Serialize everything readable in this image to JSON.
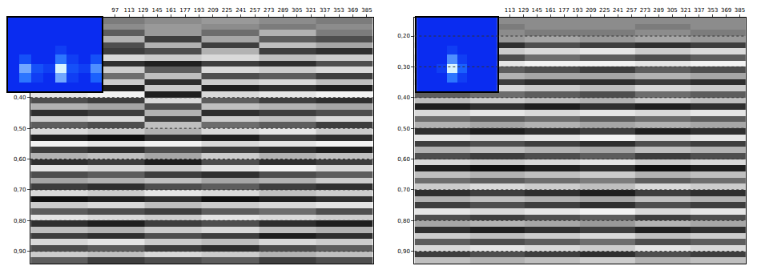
{
  "chart_data": [
    {
      "type": "heatmap",
      "x": [
        33,
        98,
        163,
        229,
        294,
        359
      ],
      "y": [
        0.15,
        0.17,
        0.19,
        0.21,
        0.23,
        0.25,
        0.27,
        0.29,
        0.31,
        0.33,
        0.35,
        0.37,
        0.39,
        0.41,
        0.43,
        0.45,
        0.47,
        0.49,
        0.51,
        0.53,
        0.55,
        0.57,
        0.59,
        0.61,
        0.63,
        0.65,
        0.67,
        0.69,
        0.71,
        0.73,
        0.75,
        0.77,
        0.79,
        0.81,
        0.83,
        0.85,
        0.87,
        0.89,
        0.91,
        0.93
      ],
      "z": [
        [
          0,
          1,
          0,
          -1,
          0,
          1
        ],
        [
          1,
          0,
          -1,
          0,
          1,
          0
        ],
        [
          -2,
          3,
          -1,
          2,
          -3,
          1
        ],
        [
          4,
          -3,
          5,
          -2,
          3,
          4
        ],
        [
          -5,
          4,
          -3,
          5,
          -4,
          -2
        ],
        [
          6,
          5,
          4,
          -3,
          5,
          6
        ],
        [
          -7,
          -6,
          -5,
          -6,
          -4,
          -5
        ],
        [
          5,
          6,
          7,
          5,
          6,
          4
        ],
        [
          -4,
          -5,
          3,
          -6,
          -5,
          -6
        ],
        [
          3,
          2,
          -4,
          4,
          3,
          5
        ],
        [
          -6,
          -5,
          6,
          -5,
          -6,
          -4
        ],
        [
          8,
          7,
          -5,
          7,
          6,
          7
        ],
        [
          -7,
          -8,
          7,
          -6,
          -7,
          -8
        ],
        [
          4,
          5,
          -6,
          3,
          5,
          6
        ],
        [
          -3,
          -2,
          4,
          -4,
          -3,
          -2
        ],
        [
          6,
          5,
          -3,
          6,
          5,
          4
        ],
        [
          -5,
          -6,
          5,
          -5,
          -4,
          -6
        ],
        [
          3,
          4,
          -4,
          2,
          3,
          5
        ],
        [
          -6,
          -5,
          -3,
          -6,
          -7,
          -5
        ],
        [
          7,
          8,
          6,
          7,
          5,
          6
        ],
        [
          -8,
          -7,
          -8,
          -6,
          -7,
          -8
        ],
        [
          5,
          6,
          4,
          5,
          6,
          7
        ],
        [
          -3,
          -4,
          -2,
          -5,
          -3,
          -4
        ],
        [
          6,
          5,
          7,
          4,
          6,
          5
        ],
        [
          -7,
          -6,
          -5,
          -7,
          -8,
          -6
        ],
        [
          4,
          3,
          5,
          6,
          4,
          3
        ],
        [
          -2,
          -3,
          -4,
          -2,
          -3,
          -5
        ],
        [
          5,
          6,
          4,
          3,
          5,
          6
        ],
        [
          -6,
          -5,
          -7,
          -6,
          -4,
          -5
        ],
        [
          8,
          7,
          6,
          8,
          7,
          6
        ],
        [
          -5,
          -6,
          -4,
          -5,
          -6,
          -7
        ],
        [
          3,
          4,
          5,
          3,
          2,
          4
        ],
        [
          -7,
          -6,
          -5,
          -7,
          -6,
          -5
        ],
        [
          6,
          7,
          5,
          4,
          6,
          7
        ],
        [
          -4,
          -3,
          -5,
          -6,
          -4,
          -3
        ],
        [
          5,
          6,
          4,
          5,
          7,
          6
        ],
        [
          -6,
          -7,
          -5,
          -4,
          -6,
          -5
        ],
        [
          4,
          3,
          5,
          6,
          4,
          3
        ],
        [
          -5,
          -4,
          -6,
          -5,
          -3,
          -4
        ],
        [
          3,
          5,
          4,
          3,
          5,
          4
        ]
      ],
      "z_range": [
        -9,
        9
      ],
      "xlim": [
        0,
        392
      ],
      "xticks": [
        97,
        113,
        129,
        145,
        161,
        177,
        193,
        209,
        225,
        241,
        257,
        273,
        289,
        305,
        321,
        337,
        353,
        369,
        385
      ],
      "ylim": [
        0.14,
        0.94
      ],
      "yticks": [
        {
          "value": 0.4,
          "label": "0,40"
        },
        {
          "value": 0.5,
          "label": "0,50"
        },
        {
          "value": 0.6,
          "label": "0,60"
        },
        {
          "value": 0.7,
          "label": "0,70"
        },
        {
          "value": 0.8,
          "label": "0,80"
        },
        {
          "value": 0.9,
          "label": "0,90"
        }
      ],
      "grid": true
    },
    {
      "type": "heatmap",
      "x": [
        33,
        98,
        163,
        229,
        294,
        359
      ],
      "y": [
        0.15,
        0.17,
        0.19,
        0.21,
        0.23,
        0.25,
        0.27,
        0.29,
        0.31,
        0.33,
        0.35,
        0.37,
        0.39,
        0.41,
        0.43,
        0.45,
        0.47,
        0.49,
        0.51,
        0.53,
        0.55,
        0.57,
        0.59,
        0.61,
        0.63,
        0.65,
        0.67,
        0.69,
        0.71,
        0.73,
        0.75,
        0.77,
        0.79,
        0.81,
        0.83,
        0.85,
        0.87,
        0.89,
        0.91,
        0.93
      ],
      "z": [
        [
          0,
          0,
          0,
          0,
          0,
          0
        ],
        [
          0,
          1,
          0,
          0,
          1,
          0
        ],
        [
          1,
          0,
          1,
          1,
          0,
          1
        ],
        [
          -2,
          -1,
          -2,
          -1,
          -2,
          -1
        ],
        [
          5,
          6,
          4,
          5,
          6,
          5
        ],
        [
          -6,
          -5,
          -6,
          -7,
          -5,
          -6
        ],
        [
          3,
          4,
          2,
          3,
          4,
          3
        ],
        [
          -8,
          -7,
          -8,
          -8,
          -7,
          -8
        ],
        [
          4,
          3,
          4,
          5,
          3,
          4
        ],
        [
          -2,
          -3,
          -2,
          -2,
          -3,
          -2
        ],
        [
          6,
          5,
          6,
          6,
          5,
          6
        ],
        [
          -5,
          -6,
          -5,
          -4,
          -6,
          -5
        ],
        [
          3,
          2,
          3,
          4,
          2,
          3
        ],
        [
          -4,
          -5,
          -4,
          -3,
          -5,
          -4
        ],
        [
          7,
          6,
          7,
          6,
          7,
          6
        ],
        [
          -6,
          -7,
          -6,
          -7,
          -6,
          -7
        ],
        [
          2,
          3,
          2,
          3,
          2,
          3
        ],
        [
          -3,
          -2,
          -3,
          -2,
          -3,
          -2
        ],
        [
          6,
          7,
          6,
          5,
          7,
          6
        ],
        [
          -7,
          -6,
          -7,
          -8,
          -6,
          -7
        ],
        [
          5,
          4,
          5,
          6,
          4,
          5
        ],
        [
          -3,
          -4,
          -3,
          -2,
          -4,
          -3
        ],
        [
          4,
          5,
          4,
          3,
          5,
          4
        ],
        [
          -6,
          -5,
          -6,
          -7,
          -5,
          -6
        ],
        [
          7,
          8,
          7,
          6,
          8,
          7
        ],
        [
          -4,
          -3,
          -4,
          -5,
          -3,
          -4
        ],
        [
          2,
          3,
          2,
          1,
          3,
          2
        ],
        [
          -5,
          -6,
          -5,
          -4,
          -6,
          -5
        ],
        [
          6,
          5,
          6,
          7,
          5,
          6
        ],
        [
          -3,
          -4,
          -3,
          -2,
          -4,
          -3
        ],
        [
          5,
          4,
          5,
          6,
          4,
          5
        ],
        [
          -7,
          -6,
          -7,
          -8,
          -6,
          -7
        ],
        [
          4,
          5,
          4,
          3,
          5,
          4
        ],
        [
          -2,
          -3,
          -2,
          -1,
          -3,
          -2
        ],
        [
          6,
          7,
          6,
          5,
          7,
          6
        ],
        [
          -5,
          -4,
          -5,
          -6,
          -4,
          -5
        ],
        [
          3,
          4,
          3,
          2,
          4,
          3
        ],
        [
          -6,
          -7,
          -6,
          -5,
          -7,
          -6
        ],
        [
          5,
          4,
          5,
          6,
          4,
          5
        ],
        [
          -4,
          -3,
          -4,
          -5,
          -3,
          -4
        ]
      ],
      "z_range": [
        -9,
        9
      ],
      "xlim": [
        0,
        392
      ],
      "xticks": [
        113,
        129,
        145,
        161,
        177,
        193,
        209,
        225,
        241,
        257,
        273,
        289,
        305,
        321,
        337,
        353,
        369,
        385
      ],
      "ylim": [
        0.14,
        0.94
      ],
      "yticks": [
        {
          "value": 0.2,
          "label": "0,20"
        },
        {
          "value": 0.3,
          "label": "0,30"
        },
        {
          "value": 0.4,
          "label": "0,40"
        },
        {
          "value": 0.5,
          "label": "0,50"
        },
        {
          "value": 0.6,
          "label": "0,60"
        },
        {
          "value": 0.7,
          "label": "0,70"
        },
        {
          "value": 0.8,
          "label": "0,80"
        },
        {
          "value": 0.9,
          "label": "0,90"
        }
      ],
      "grid": true
    },
    {
      "type": "heatmap",
      "z": [
        [
          0,
          0,
          0,
          0,
          0,
          0,
          0,
          0
        ],
        [
          0,
          4,
          1,
          0,
          6,
          1,
          0,
          3
        ],
        [
          0,
          6,
          2,
          1,
          9,
          2,
          1,
          5
        ],
        [
          0,
          2,
          0,
          0,
          4,
          1,
          0,
          2
        ],
        [
          0,
          0,
          0,
          0,
          1,
          0,
          0,
          0
        ],
        [
          0,
          0,
          0,
          0,
          0,
          0,
          0,
          0
        ],
        [
          0,
          0,
          0,
          0,
          0,
          0,
          0,
          0
        ],
        [
          0,
          0,
          0,
          0,
          0,
          0,
          0,
          0
        ]
      ],
      "z_range": [
        0,
        9
      ],
      "tick_labels": false
    },
    {
      "type": "heatmap",
      "z": [
        [
          0,
          0,
          0,
          0,
          0,
          0,
          0,
          0
        ],
        [
          0,
          0,
          0,
          4,
          1,
          0,
          0,
          0
        ],
        [
          0,
          0,
          1,
          9,
          3,
          0,
          0,
          0
        ],
        [
          0,
          0,
          0,
          5,
          1,
          0,
          0,
          0
        ],
        [
          0,
          0,
          0,
          1,
          0,
          0,
          0,
          0
        ],
        [
          0,
          0,
          0,
          0,
          0,
          0,
          0,
          0
        ],
        [
          0,
          0,
          0,
          0,
          0,
          0,
          0,
          0
        ],
        [
          0,
          0,
          0,
          0,
          0,
          0,
          0,
          0
        ]
      ],
      "z_range": [
        0,
        9
      ],
      "tick_labels": false
    }
  ]
}
